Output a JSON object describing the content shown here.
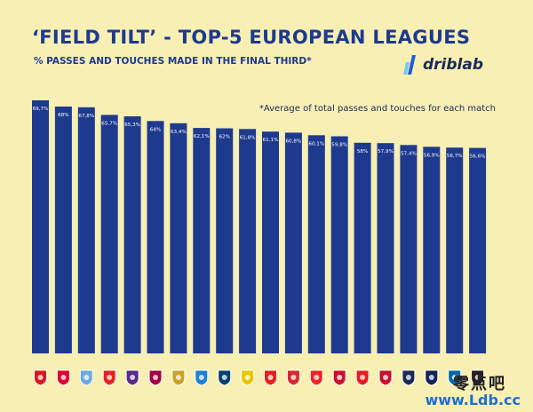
{
  "header": {
    "title": "‘FIELD TILT’ - TOP-5 EUROPEAN LEAGUES",
    "subtitle": "% PASSES AND TOUCHES MADE IN THE FINAL THIRD*",
    "note": "*Average of total passes and touches for each match"
  },
  "brand": {
    "logo_text": "driblab",
    "watermark": "www.Ldb.cc",
    "watermark_cn": "零点吧"
  },
  "colors": {
    "background": "#f7efb4",
    "bar": "#1d3a8f",
    "text": "#1d3a8f"
  },
  "chart_data": {
    "type": "bar",
    "title": "‘FIELD TILT’ - TOP-5 EUROPEAN LEAGUES",
    "subtitle": "% PASSES AND TOUCHES MADE IN THE FINAL THIRD*",
    "xlabel": "",
    "ylabel": "",
    "grid": false,
    "legend": "none",
    "values": [
      69.7,
      68,
      67.8,
      65.7,
      65.3,
      64,
      63.4,
      62.1,
      62,
      61.8,
      61.1,
      60.8,
      60.1,
      59.8,
      58,
      57.9,
      57.4,
      56.9,
      56.7,
      56.6
    ],
    "data_labels": [
      "69,7%",
      "68%",
      "67,8%",
      "65,7%",
      "65,3%",
      "64%",
      "63,4%",
      "62,1%",
      "62%",
      "61,8%",
      "61,1%",
      "60,8%",
      "60,1%",
      "59,8%",
      "58%",
      "57,9%",
      "57,4%",
      "56,9%",
      "56,7%",
      "56,6%"
    ],
    "category_icons": [
      {
        "icon": "arsenal-crest-icon",
        "color": "#d71920"
      },
      {
        "icon": "bayern-crest-icon",
        "color": "#dc052d"
      },
      {
        "icon": "man-city-crest-icon",
        "color": "#6cabdd"
      },
      {
        "icon": "leverkusen-crest-icon",
        "color": "#e32221"
      },
      {
        "icon": "fiorentina-crest-icon",
        "color": "#5b2a86"
      },
      {
        "icon": "barcelona-crest-icon",
        "color": "#a50044"
      },
      {
        "icon": "real-madrid-crest-icon",
        "color": "#c9a227"
      },
      {
        "icon": "napoli-crest-icon",
        "color": "#1f7fd6"
      },
      {
        "icon": "psg-crest-icon",
        "color": "#004170"
      },
      {
        "icon": "lens-crest-icon",
        "color": "#e8c600"
      },
      {
        "icon": "stuttgart-crest-icon",
        "color": "#e32219"
      },
      {
        "icon": "sevilla-crest-icon",
        "color": "#d8282f"
      },
      {
        "icon": "athletic-crest-icon",
        "color": "#ee2523"
      },
      {
        "icon": "liverpool-crest-icon",
        "color": "#c8102e"
      },
      {
        "icon": "monaco-crest-icon",
        "color": "#e51b22"
      },
      {
        "icon": "lille-crest-icon",
        "color": "#c8102e"
      },
      {
        "icon": "rb-leipzig-crest-icon",
        "color": "#1b2a55"
      },
      {
        "icon": "tottenham-crest-icon",
        "color": "#132257"
      },
      {
        "icon": "inter-crest-icon",
        "color": "#0068a8"
      },
      {
        "icon": "newcastle-crest-icon",
        "color": "#241f20"
      }
    ],
    "ylim": [
      0,
      70
    ]
  }
}
